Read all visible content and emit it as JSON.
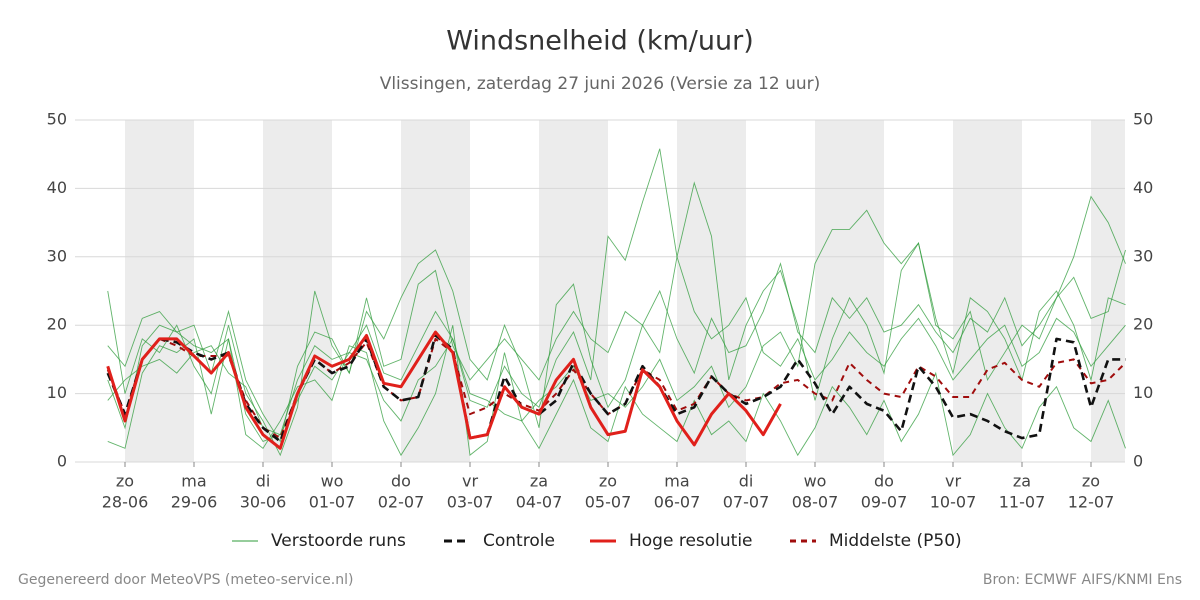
{
  "chart_data": {
    "type": "line",
    "title": "Windsnelheid (km/uur)",
    "subtitle": "Vlissingen, zaterdag 27 juni 2026 (Versie za 12 uur)",
    "xlim": [
      0,
      59
    ],
    "xticks": [
      {
        "value": 1,
        "label": "zo",
        "sublabel": "28-06"
      },
      {
        "value": 5,
        "label": "ma",
        "sublabel": "29-06"
      },
      {
        "value": 9,
        "label": "di",
        "sublabel": "30-06"
      },
      {
        "value": 13,
        "label": "wo",
        "sublabel": "01-07"
      },
      {
        "value": 17,
        "label": "do",
        "sublabel": "02-07"
      },
      {
        "value": 21,
        "label": "vr",
        "sublabel": "03-07"
      },
      {
        "value": 25,
        "label": "za",
        "sublabel": "04-07"
      },
      {
        "value": 29,
        "label": "zo",
        "sublabel": "05-07"
      },
      {
        "value": 33,
        "label": "ma",
        "sublabel": "06-07"
      },
      {
        "value": 37,
        "label": "di",
        "sublabel": "07-07"
      },
      {
        "value": 41,
        "label": "wo",
        "sublabel": "08-07"
      },
      {
        "value": 45,
        "label": "do",
        "sublabel": "09-07"
      },
      {
        "value": 49,
        "label": "vr",
        "sublabel": "10-07"
      },
      {
        "value": 53,
        "label": "za",
        "sublabel": "11-07"
      },
      {
        "value": 57,
        "label": "zo",
        "sublabel": "12-07"
      }
    ],
    "ylim": [
      0,
      50
    ],
    "yticks": [
      0,
      10,
      20,
      30,
      40,
      50
    ],
    "grid": true,
    "ensemble": {
      "name": "Verstoorde runs",
      "color": "#2e9b3a",
      "members": [
        [
          12,
          5,
          17,
          20,
          19,
          17,
          16,
          18,
          7,
          3,
          4,
          12,
          17,
          15,
          16,
          20,
          13,
          12,
          17,
          22,
          18,
          9,
          8,
          14,
          10,
          8,
          15,
          19,
          12,
          33,
          29.5,
          38,
          45.8,
          30,
          22,
          18,
          20,
          24,
          16,
          14,
          18,
          12,
          15,
          19,
          16,
          14,
          18,
          21,
          17,
          12,
          15,
          18,
          20,
          14,
          16,
          21,
          19,
          14,
          17,
          20
        ],
        [
          25,
          10,
          18,
          16,
          20,
          14,
          10,
          20,
          10,
          6,
          1,
          8,
          25,
          17,
          13,
          22,
          18,
          24,
          29,
          31,
          25,
          15,
          12,
          20,
          14,
          5,
          23,
          26,
          15,
          8,
          12,
          20,
          16,
          30,
          40.8,
          33,
          12,
          20,
          25,
          28,
          20,
          9,
          18,
          24,
          20,
          13,
          28,
          32,
          21,
          13,
          24,
          22,
          18,
          12,
          22,
          25,
          20,
          12,
          24,
          23
        ],
        [
          9,
          12,
          14,
          15,
          13,
          16,
          17,
          13,
          11,
          5,
          4,
          9,
          14,
          12,
          16,
          15,
          9,
          6,
          12,
          14,
          18,
          10,
          9,
          7,
          6,
          9,
          11,
          14,
          9,
          10,
          8,
          11,
          15,
          9,
          11,
          14,
          8,
          11,
          17,
          19,
          14,
          29,
          34,
          34,
          36.8,
          32,
          29,
          32,
          20,
          18,
          22,
          12,
          16,
          20,
          18,
          24,
          30,
          38.8,
          35,
          29
        ],
        [
          3,
          2,
          13,
          17,
          16,
          18,
          7,
          18,
          4,
          2,
          6,
          11,
          12,
          9,
          17,
          16,
          6,
          1,
          5,
          10,
          20,
          1,
          3,
          16,
          6,
          2,
          7,
          12,
          5,
          3,
          11,
          7,
          5,
          3,
          9,
          4,
          6,
          3,
          10,
          6,
          1,
          5,
          11,
          8,
          4,
          9,
          3,
          7,
          13,
          1,
          4,
          10,
          5,
          2,
          8,
          11,
          5,
          3,
          9,
          2
        ],
        [
          17,
          14,
          21,
          22,
          19,
          20,
          13,
          22,
          12,
          7,
          3,
          14,
          19,
          18,
          13,
          24,
          14,
          15,
          26,
          28,
          17,
          12,
          15,
          18,
          15,
          12,
          18,
          22,
          18,
          16,
          22,
          20,
          25,
          18,
          13,
          21,
          16,
          17,
          22,
          29,
          19,
          16,
          24,
          21,
          24,
          19,
          20,
          23,
          19,
          16,
          21,
          19,
          24,
          17,
          20,
          24,
          27,
          21,
          22,
          31
        ]
      ]
    },
    "series": [
      {
        "name": "Controle",
        "color": "#111111",
        "dash": "8,5",
        "values": [
          13,
          7,
          15,
          18,
          17.5,
          16,
          15,
          16,
          8.5,
          5,
          3,
          10,
          15,
          13,
          14,
          18,
          11,
          9,
          9.5,
          18.5,
          16.5,
          3.5,
          4,
          12.5,
          8,
          7,
          9,
          14.5,
          10,
          7,
          8.5,
          14,
          11,
          7,
          8,
          12.5,
          10,
          8.5,
          9.5,
          11,
          15,
          11.5,
          7,
          11,
          8.5,
          7.5,
          4.5,
          14,
          11,
          6.5,
          7,
          6,
          4.5,
          3.5,
          4,
          18,
          17.5,
          8,
          15,
          15
        ]
      },
      {
        "name": "Hoge resolutie",
        "color": "#e0201b",
        "dash": "",
        "values": [
          14,
          6,
          15,
          18,
          18,
          15.5,
          13,
          16,
          8,
          4,
          2,
          10,
          15.5,
          14,
          15,
          18.5,
          11.5,
          11,
          15,
          19,
          16,
          3.5,
          4,
          11,
          8,
          7,
          12,
          15,
          8,
          4,
          4.5,
          13.5,
          11,
          6,
          2.5,
          7,
          10,
          7.5,
          4,
          8.5,
          null,
          null,
          null,
          null,
          null,
          null,
          null,
          null,
          null,
          null,
          null,
          null,
          null,
          null,
          null,
          null,
          null,
          null,
          null,
          null
        ]
      },
      {
        "name": "Middelste (P50)",
        "color": "#a00d0d",
        "dash": "6,5",
        "values": [
          13.5,
          7,
          15,
          18,
          17,
          15.5,
          15.5,
          15.5,
          9,
          5,
          3.5,
          10,
          15,
          13,
          14.5,
          17.5,
          11,
          9,
          9.5,
          18,
          16,
          7,
          8,
          10,
          8.5,
          7.5,
          10,
          13.5,
          10,
          7,
          8.5,
          13.5,
          12,
          7.5,
          8.5,
          12.5,
          10,
          9,
          9.5,
          11.5,
          12,
          10,
          9,
          14.5,
          12,
          10,
          9.5,
          14,
          12.5,
          9.5,
          9.5,
          13.5,
          14.5,
          12,
          11,
          14.5,
          15,
          11.5,
          12,
          14.5
        ]
      }
    ],
    "footer_left": "Gegenereerd door MeteoVPS (meteo-service.nl)",
    "footer_right": "Bron: ECMWF AIFS/KNMI Ens"
  }
}
